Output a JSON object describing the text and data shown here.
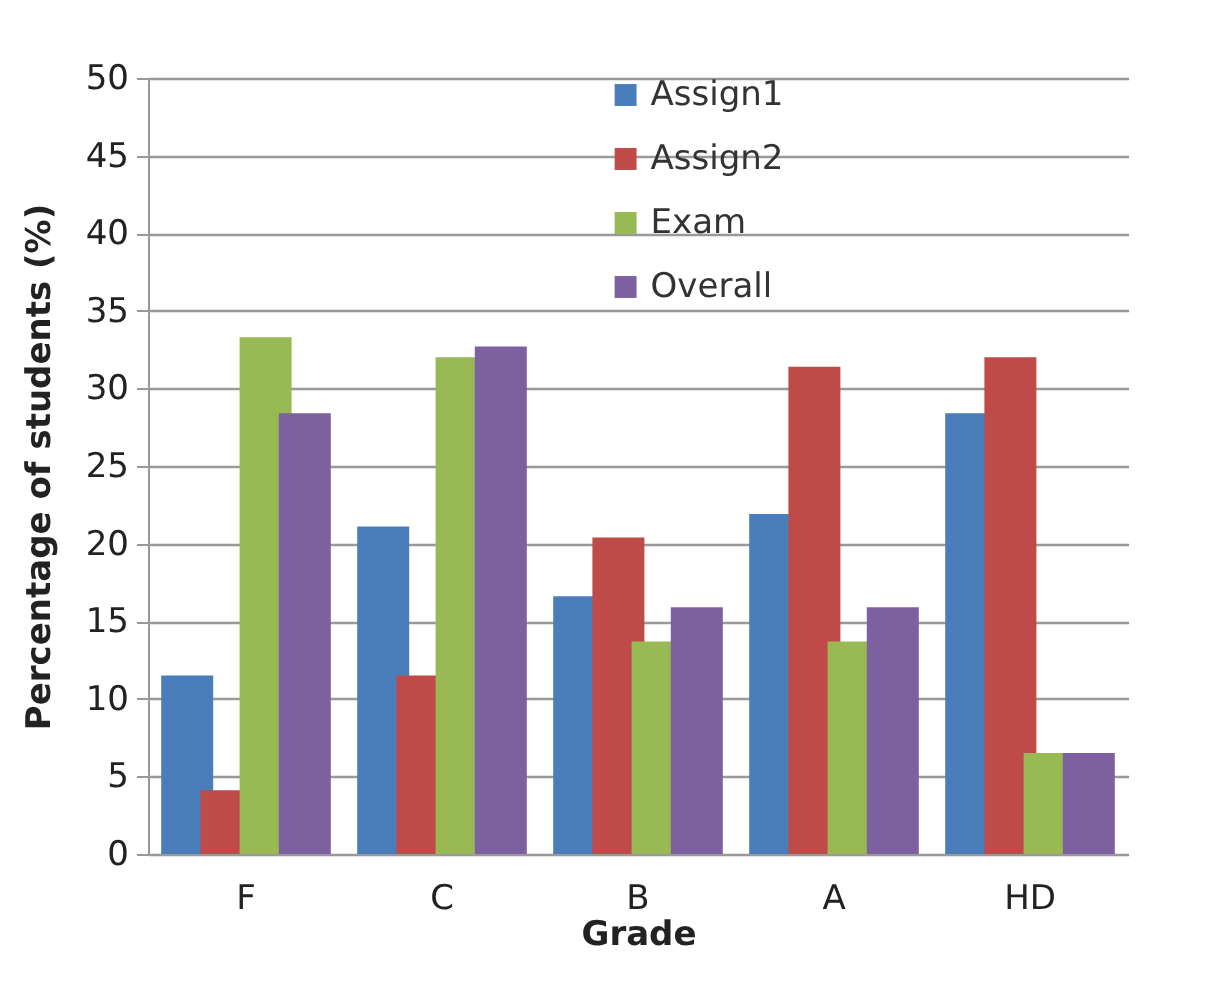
{
  "chart_data": {
    "type": "bar",
    "xlabel": "Grade",
    "ylabel": "Percentage  of students (%)",
    "categories": [
      "F",
      "C",
      "B",
      "A",
      "HD"
    ],
    "series": [
      {
        "name": "Assign1",
        "color": "#4a7ebb",
        "values": [
          11.5,
          21.1,
          16.6,
          21.9,
          28.4
        ]
      },
      {
        "name": "Assign2",
        "color": "#be4b48",
        "values": [
          4.1,
          11.5,
          20.4,
          31.4,
          32.0
        ]
      },
      {
        "name": "Exam",
        "color": "#98b954",
        "values": [
          33.3,
          32.0,
          13.7,
          13.7,
          6.5
        ]
      },
      {
        "name": "Overall",
        "color": "#7d60a0",
        "values": [
          28.4,
          32.7,
          15.9,
          15.9,
          6.5
        ]
      }
    ],
    "ylim": [
      0,
      50
    ],
    "yticks": [
      0,
      5,
      10,
      15,
      20,
      25,
      30,
      35,
      40,
      45,
      50
    ],
    "grid": "y",
    "legend": "top right"
  }
}
